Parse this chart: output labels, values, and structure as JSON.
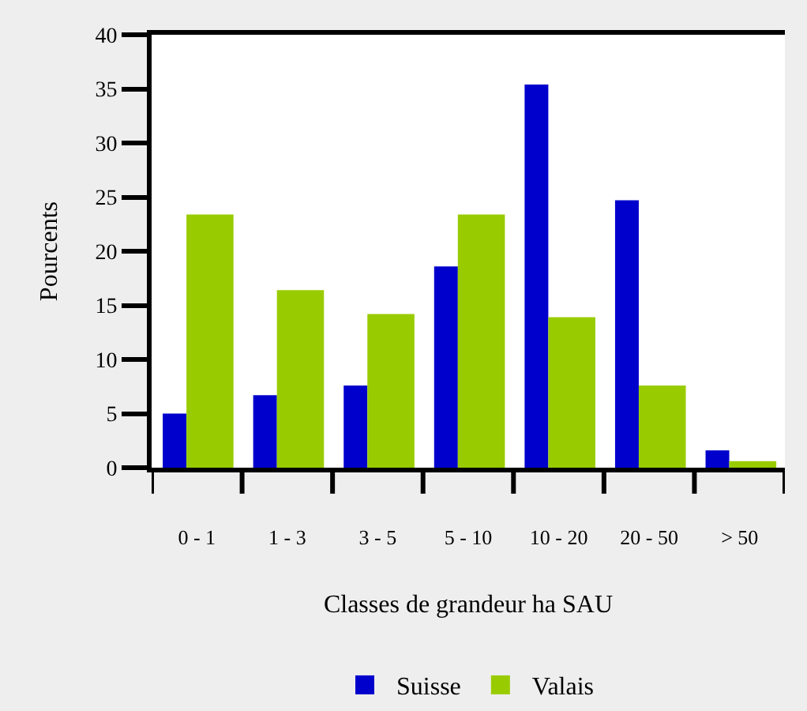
{
  "chart_data": {
    "type": "bar",
    "xlabel": "Classes de grandeur ha SAU",
    "ylabel": "Pourcents",
    "categories": [
      "0 - 1",
      "1 - 3",
      "3 - 5",
      "5 - 10",
      "10 - 20",
      "20 - 50",
      "> 50"
    ],
    "series": [
      {
        "name": "Suisse",
        "color": "#0000cc",
        "values": [
          5.0,
          6.7,
          7.6,
          18.6,
          35.4,
          24.7,
          1.6
        ]
      },
      {
        "name": "Valais",
        "color": "#99cc00",
        "values": [
          23.4,
          16.4,
          14.2,
          23.4,
          13.9,
          7.6,
          0.6
        ]
      }
    ],
    "ylim": [
      0,
      40
    ],
    "yticks": [
      0,
      5,
      10,
      15,
      20,
      25,
      30,
      35,
      40
    ],
    "legend": "bottom"
  }
}
